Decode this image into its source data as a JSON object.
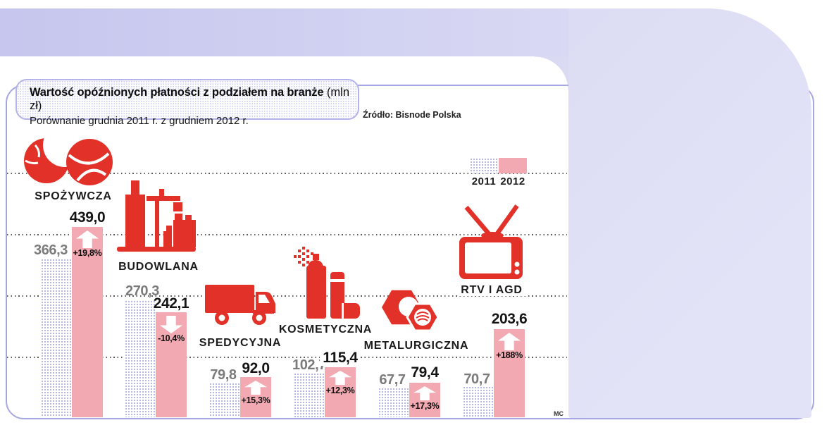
{
  "header": {
    "title_bold": "Wartość opóźnionych płatności z podziałem na branże",
    "title_unit": " (mln zł)",
    "subtitle": "Porównanie grudnia 2011 r. z grudniem 2012 r.",
    "source": "Źródło: Bisnode Polska"
  },
  "legend": {
    "y2011": "2011",
    "y2012": "2012"
  },
  "credit": "MC",
  "industries": [
    {
      "label": "SPOŻYWCZA",
      "icon": "croissant-bread-icon",
      "v2011": "366,3",
      "v2012": "439,0",
      "change": "+19,8%",
      "direction": "up"
    },
    {
      "label": "BUDOWLANA",
      "icon": "buildings-crane-icon",
      "v2011": "270,3",
      "v2012": "242,1",
      "change": "-10,4%",
      "direction": "down"
    },
    {
      "label": "SPEDYCYJNA",
      "icon": "truck-icon",
      "v2011": "79,8",
      "v2012": "92,0",
      "change": "+15,3%",
      "direction": "up"
    },
    {
      "label": "KOSMETYCZNA",
      "icon": "cosmetic-spray-icon",
      "v2011": "102,7",
      "v2012": "115,4",
      "change": "+12,3%",
      "direction": "up"
    },
    {
      "label": "METALURGICZNA",
      "icon": "hex-nuts-icon",
      "v2011": "67,7",
      "v2012": "79,4",
      "change": "+17,3%",
      "direction": "up"
    },
    {
      "label": "RTV I AGD",
      "icon": "tv-antenna-icon",
      "v2011": "70,7",
      "v2012": "203,6",
      "change": "+188%",
      "direction": "up"
    }
  ],
  "chart_data": {
    "type": "bar",
    "title": "Wartość opóźnionych płatności z podziałem na branże (mln zł)",
    "subtitle": "Porównanie grudnia 2011 r. z grudniem 2012 r.",
    "source": "Źródło: Bisnode Polska",
    "unit": "mln zł",
    "categories": [
      "SPOŻYWCZA",
      "BUDOWLANA",
      "SPEDYCYJNA",
      "KOSMETYCZNA",
      "METALURGICZNA",
      "RTV I AGD"
    ],
    "series": [
      {
        "name": "2011",
        "values": [
          366.3,
          270.3,
          79.8,
          102.7,
          67.7,
          70.7
        ]
      },
      {
        "name": "2012",
        "values": [
          439.0,
          242.1,
          92.0,
          115.4,
          79.4,
          203.6
        ]
      }
    ],
    "changes": [
      "+19,8%",
      "-10,4%",
      "+15,3%",
      "+12,3%",
      "+17,3%",
      "+188%"
    ],
    "ylim": [
      0,
      480
    ],
    "grid": "horizontal-dotted",
    "legend_position": "top-right"
  },
  "colors": {
    "red": "#e23128",
    "pink_2012": "#f2a9b2",
    "dot_2011": "#9f9fdc",
    "band": "#c6c6ee",
    "panel": "#e0e1f6",
    "frame_border": "#a6a6e2",
    "gray_value": "#7b7b7b"
  }
}
